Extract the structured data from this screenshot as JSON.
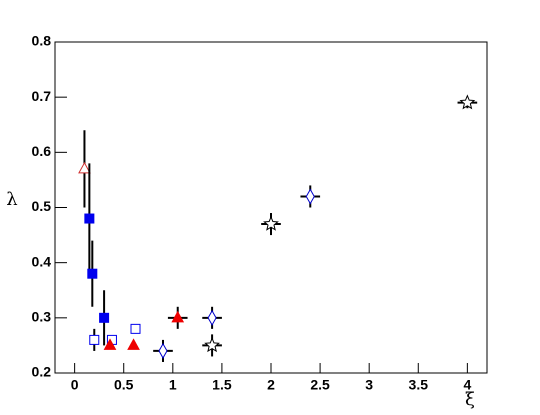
{
  "chart_data": {
    "type": "scatter",
    "xlabel": "ξ",
    "ylabel": "λ",
    "xlim": [
      -0.2,
      4.2
    ],
    "ylim": [
      0.2,
      0.8
    ],
    "xticks": [
      0,
      0.5,
      1,
      1.5,
      2,
      2.5,
      3,
      3.5,
      4
    ],
    "yticks": [
      0.2,
      0.3,
      0.4,
      0.5,
      0.6,
      0.7,
      0.8
    ],
    "series": [
      {
        "marker": "triangle-open",
        "color": "#d03030",
        "x": [
          0.1
        ],
        "values": [
          0.57
        ],
        "yerr": [
          0.07
        ]
      },
      {
        "marker": "square-filled",
        "color": "#0000ee",
        "x": [
          0.15,
          0.18,
          0.3
        ],
        "values": [
          0.48,
          0.38,
          0.3
        ],
        "yerr": [
          0.1,
          0.06,
          0.05
        ]
      },
      {
        "marker": "square-open",
        "color": "#0000ee",
        "x": [
          0.2,
          0.38,
          0.62
        ],
        "values": [
          0.26,
          0.26,
          0.28
        ],
        "yerr": [
          0.02,
          0.0,
          0.0
        ]
      },
      {
        "marker": "triangle-filled",
        "color": "#ee0000",
        "x": [
          0.36,
          0.6,
          1.05
        ],
        "values": [
          0.25,
          0.25,
          0.3
        ],
        "yerr": [
          0.0,
          0.0,
          0.02
        ],
        "xerr": [
          0.0,
          0.0,
          0.1
        ]
      },
      {
        "marker": "diamond-open",
        "color": "#0000cc",
        "x": [
          0.9,
          1.4,
          2.4
        ],
        "values": [
          0.24,
          0.3,
          0.52
        ],
        "yerr": [
          0.02,
          0.02,
          0.02
        ],
        "xerr": [
          0.1,
          0.1,
          0.1
        ]
      },
      {
        "marker": "star-open",
        "color": "#000000",
        "x": [
          1.4,
          2.0,
          4.0
        ],
        "values": [
          0.25,
          0.47,
          0.69
        ],
        "yerr": [
          0.02,
          0.02,
          0.01
        ],
        "xerr": [
          0.1,
          0.1,
          0.1
        ]
      }
    ]
  }
}
